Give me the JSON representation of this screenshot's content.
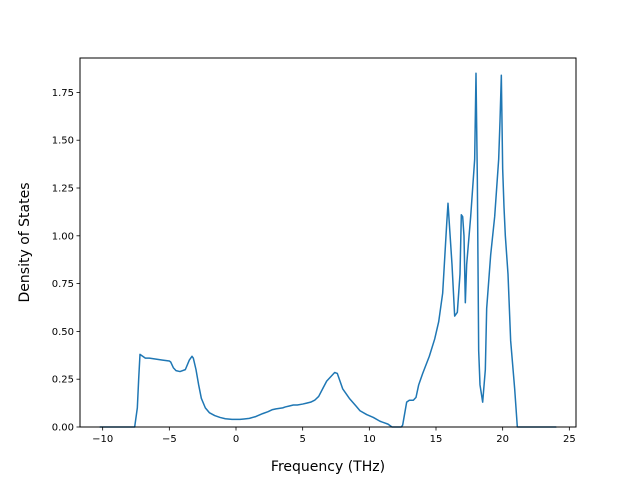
{
  "chart_data": {
    "type": "line",
    "xlabel": "Frequency (THz)",
    "ylabel": "Density of States",
    "xlim": [
      -11.7,
      25.5
    ],
    "ylim": [
      0,
      1.93
    ],
    "xticks": [
      -10,
      -5,
      0,
      5,
      10,
      15,
      20,
      25
    ],
    "xtick_labels": [
      "−10",
      "−5",
      "0",
      "5",
      "10",
      "15",
      "20",
      "25"
    ],
    "yticks": [
      0.0,
      0.25,
      0.5,
      0.75,
      1.0,
      1.25,
      1.5,
      1.75
    ],
    "ytick_labels": [
      "0.00",
      "0.25",
      "0.50",
      "0.75",
      "1.00",
      "1.25",
      "1.50",
      "1.75"
    ],
    "grid": false,
    "series": [
      {
        "color": "#1f77b4",
        "x": [
          -10.2,
          -7.6,
          -7.4,
          -7.3,
          -7.2,
          -7.0,
          -6.8,
          -6.5,
          -6.0,
          -5.5,
          -5.0,
          -4.9,
          -4.7,
          -4.5,
          -4.2,
          -3.8,
          -3.5,
          -3.3,
          -3.2,
          -3.0,
          -2.8,
          -2.6,
          -2.3,
          -2.0,
          -1.6,
          -1.2,
          -0.8,
          -0.3,
          0.0,
          0.3,
          0.6,
          1.0,
          1.5,
          2.0,
          2.4,
          2.7,
          3.0,
          3.5,
          3.7,
          4.0,
          4.3,
          4.6,
          5.0,
          5.3,
          5.6,
          5.9,
          6.2,
          6.5,
          6.8,
          7.0,
          7.2,
          7.4,
          7.6,
          7.8,
          8.0,
          8.5,
          9.0,
          9.3,
          9.8,
          10.3,
          10.8,
          11.4,
          11.7,
          12.1,
          12.4,
          12.5,
          12.6,
          12.8,
          13.0,
          13.3,
          13.5,
          13.7,
          14.0,
          14.5,
          14.9,
          15.2,
          15.5,
          15.8,
          15.9,
          16.2,
          16.4,
          16.6,
          16.8,
          16.9,
          17.0,
          17.1,
          17.2,
          17.3,
          17.6,
          17.9,
          18.0,
          18.1,
          18.2,
          18.3,
          18.5,
          18.7,
          18.8,
          19.1,
          19.4,
          19.7,
          19.8,
          19.9,
          20.0,
          20.1,
          20.2,
          20.4,
          20.6,
          20.9,
          21.1,
          21.3,
          22.0,
          23.0,
          24.0
        ],
        "y": [
          0.0,
          0.0,
          0.1,
          0.25,
          0.38,
          0.37,
          0.36,
          0.36,
          0.355,
          0.35,
          0.345,
          0.34,
          0.31,
          0.295,
          0.29,
          0.3,
          0.35,
          0.37,
          0.36,
          0.3,
          0.22,
          0.15,
          0.1,
          0.075,
          0.06,
          0.05,
          0.043,
          0.04,
          0.04,
          0.04,
          0.042,
          0.045,
          0.055,
          0.07,
          0.08,
          0.09,
          0.095,
          0.1,
          0.105,
          0.11,
          0.115,
          0.115,
          0.12,
          0.125,
          0.13,
          0.14,
          0.16,
          0.2,
          0.24,
          0.255,
          0.27,
          0.285,
          0.28,
          0.24,
          0.2,
          0.15,
          0.11,
          0.085,
          0.065,
          0.05,
          0.03,
          0.015,
          0.0,
          0.0,
          0.0,
          0.01,
          0.05,
          0.13,
          0.14,
          0.14,
          0.155,
          0.22,
          0.28,
          0.37,
          0.46,
          0.55,
          0.7,
          1.06,
          1.17,
          0.85,
          0.58,
          0.6,
          0.8,
          1.11,
          1.1,
          1.0,
          0.65,
          0.85,
          1.1,
          1.4,
          1.85,
          1.3,
          0.4,
          0.22,
          0.13,
          0.3,
          0.62,
          0.9,
          1.1,
          1.4,
          1.6,
          1.84,
          1.35,
          1.15,
          1.0,
          0.8,
          0.45,
          0.2,
          0.0,
          0.0,
          0.0,
          0.0,
          0.0
        ]
      }
    ]
  }
}
